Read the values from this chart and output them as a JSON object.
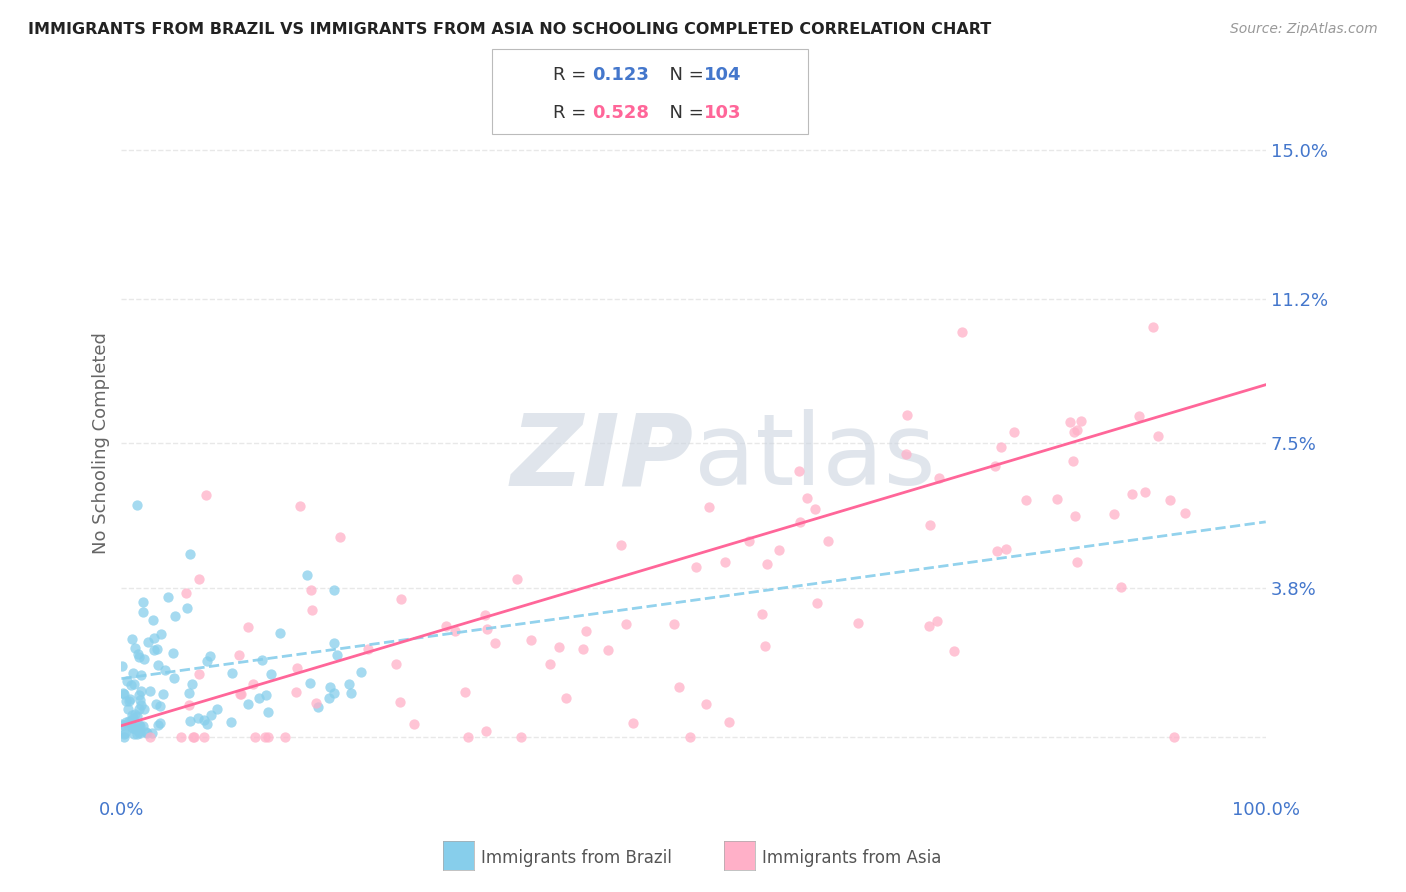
{
  "title": "IMMIGRANTS FROM BRAZIL VS IMMIGRANTS FROM ASIA NO SCHOOLING COMPLETED CORRELATION CHART",
  "source": "Source: ZipAtlas.com",
  "ylabel": "No Schooling Completed",
  "xlim": [
    0.0,
    100.0
  ],
  "ylim": [
    -1.5,
    16.5
  ],
  "yticks": [
    0.0,
    3.8,
    7.5,
    11.2,
    15.0
  ],
  "ytick_labels": [
    "",
    "3.8%",
    "7.5%",
    "11.2%",
    "15.0%"
  ],
  "xticks": [
    0.0,
    100.0
  ],
  "xtick_labels": [
    "0.0%",
    "100.0%"
  ],
  "legend_r_brazil": "0.123",
  "legend_n_brazil": "104",
  "legend_r_asia": "0.528",
  "legend_n_asia": "103",
  "color_brazil": "#87CEEB",
  "color_asia": "#FFB0C8",
  "color_trendline_brazil": "#87CEEB",
  "color_trendline_asia": "#FF6699",
  "background_color": "#ffffff",
  "grid_color": "#e8e8e8",
  "watermark_color": "#ccd5e0",
  "title_color": "#222222",
  "source_color": "#999999",
  "tick_color": "#4477CC",
  "ylabel_color": "#666666"
}
